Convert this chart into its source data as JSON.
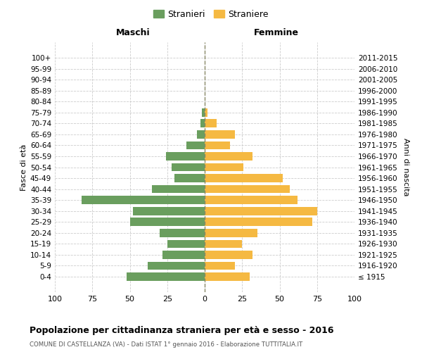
{
  "age_groups": [
    "100+",
    "95-99",
    "90-94",
    "85-89",
    "80-84",
    "75-79",
    "70-74",
    "65-69",
    "60-64",
    "55-59",
    "50-54",
    "45-49",
    "40-44",
    "35-39",
    "30-34",
    "25-29",
    "20-24",
    "15-19",
    "10-14",
    "5-9",
    "0-4"
  ],
  "birth_years": [
    "≤ 1915",
    "1916-1920",
    "1921-1925",
    "1926-1930",
    "1931-1935",
    "1936-1940",
    "1941-1945",
    "1946-1950",
    "1951-1955",
    "1956-1960",
    "1961-1965",
    "1966-1970",
    "1971-1975",
    "1976-1980",
    "1981-1985",
    "1986-1990",
    "1991-1995",
    "1996-2000",
    "2001-2005",
    "2006-2010",
    "2011-2015"
  ],
  "maschi": [
    0,
    0,
    0,
    0,
    0,
    2,
    3,
    5,
    12,
    26,
    22,
    20,
    35,
    82,
    48,
    50,
    30,
    25,
    28,
    38,
    52
  ],
  "femmine": [
    0,
    0,
    0,
    0,
    0,
    2,
    8,
    20,
    17,
    32,
    26,
    52,
    57,
    62,
    75,
    72,
    35,
    25,
    32,
    20,
    30
  ],
  "maschi_color": "#6a9e5e",
  "femmine_color": "#f5b942",
  "grid_color": "#cccccc",
  "title": "Popolazione per cittadinanza straniera per età e sesso - 2016",
  "subtitle": "COMUNE DI CASTELLANZA (VA) - Dati ISTAT 1° gennaio 2016 - Elaborazione TUTTITALIA.IT",
  "ylabel_left": "Fasce di età",
  "ylabel_right": "Anni di nascita",
  "label_maschi": "Maschi",
  "label_femmine": "Femmine",
  "legend_maschi": "Stranieri",
  "legend_femmine": "Straniere",
  "xlim": 100
}
